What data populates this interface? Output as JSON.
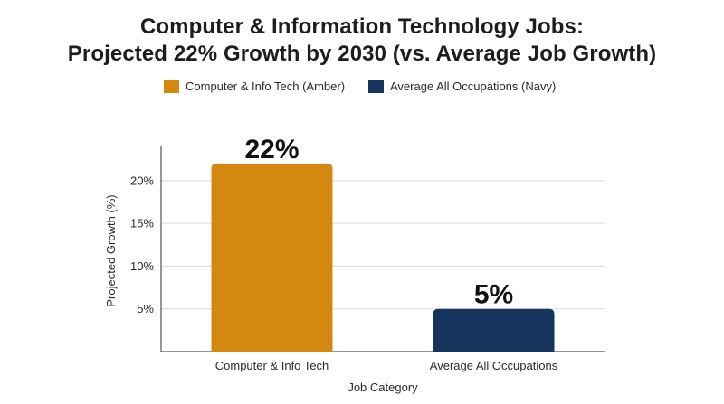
{
  "chart_data": {
    "type": "bar",
    "title_lines": [
      "Computer & Information Technology Jobs:",
      "Projected 22% Growth by 2030 (vs. Average Job Growth)"
    ],
    "categories": [
      "Computer & Info Tech",
      "Average All Occupations"
    ],
    "values": [
      22,
      5
    ],
    "data_labels": [
      "22%",
      "5%"
    ],
    "legend": [
      {
        "label": "Computer & Info Tech (Amber)",
        "color": "#d4880f"
      },
      {
        "label": "Average All Occupations (Navy)",
        "color": "#15355f"
      }
    ],
    "bar_colors": [
      "#d4880f",
      "#15355f"
    ],
    "xlabel": "Job Category",
    "ylabel": "Projected Growth (%)",
    "ylim": [
      0,
      24
    ],
    "yticks": [
      5,
      10,
      15,
      20
    ],
    "ytick_labels": [
      "5%",
      "10%",
      "15%",
      "20%"
    ],
    "grid": true,
    "legend_position": "top"
  }
}
